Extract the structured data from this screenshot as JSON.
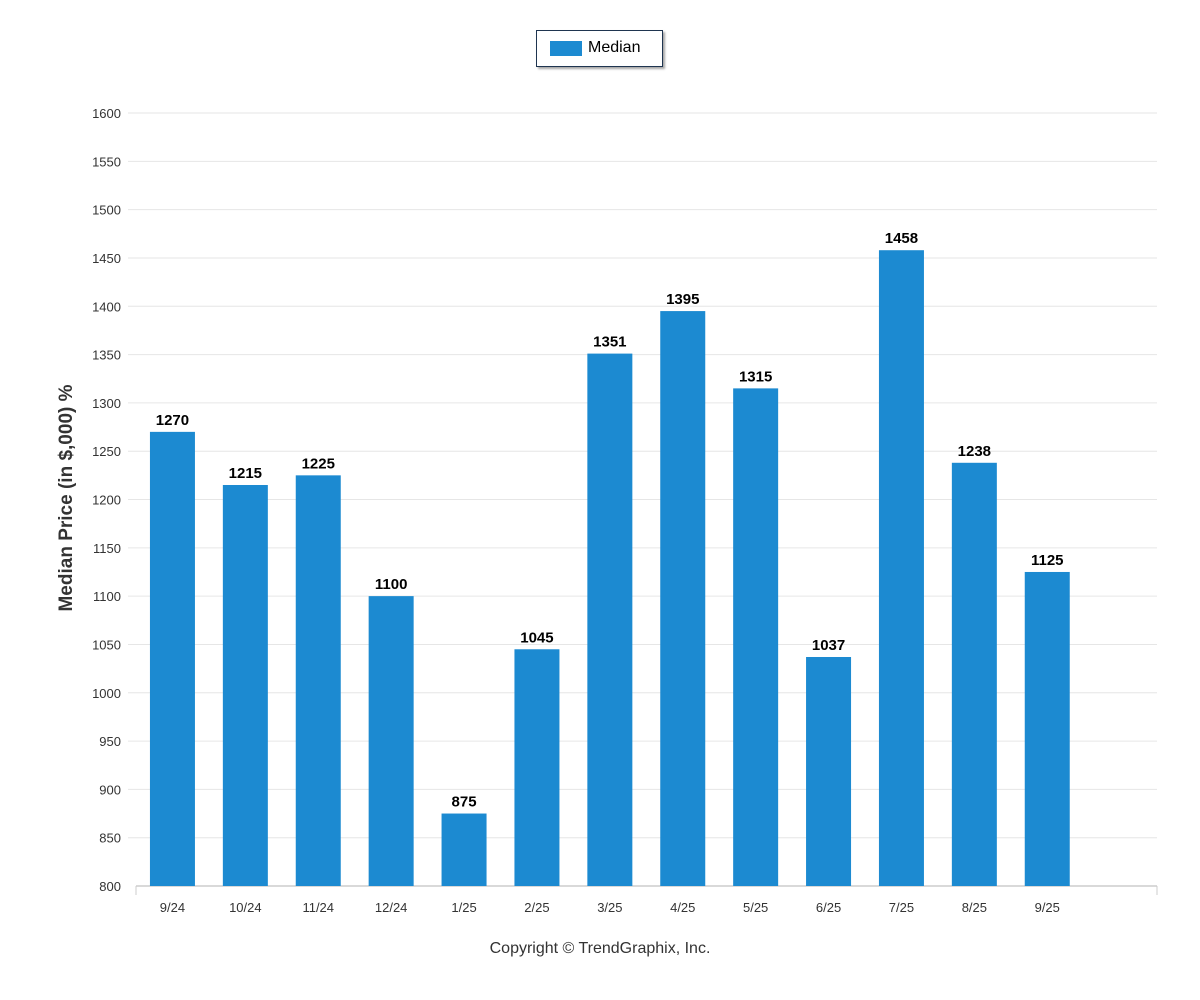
{
  "legend": {
    "label": "Median",
    "color": "#1c8ad1"
  },
  "copyright": "Copyright © TrendGraphix, Inc.",
  "chart_data": {
    "type": "bar",
    "title": "",
    "xlabel": "",
    "ylabel": "Median Price (in $,000) %",
    "ylim": [
      800,
      1600
    ],
    "ytick_step": 50,
    "grid": true,
    "legend_position": "top-center",
    "bar_color": "#1c8ad1",
    "categories": [
      "9/24",
      "10/24",
      "11/24",
      "12/24",
      "1/25",
      "2/25",
      "3/25",
      "4/25",
      "5/25",
      "6/25",
      "7/25",
      "8/25",
      "9/25"
    ],
    "series": [
      {
        "name": "Median",
        "values": [
          1270,
          1215,
          1225,
          1100,
          875,
          1045,
          1351,
          1395,
          1315,
          1037,
          1458,
          1238,
          1125
        ]
      }
    ]
  }
}
